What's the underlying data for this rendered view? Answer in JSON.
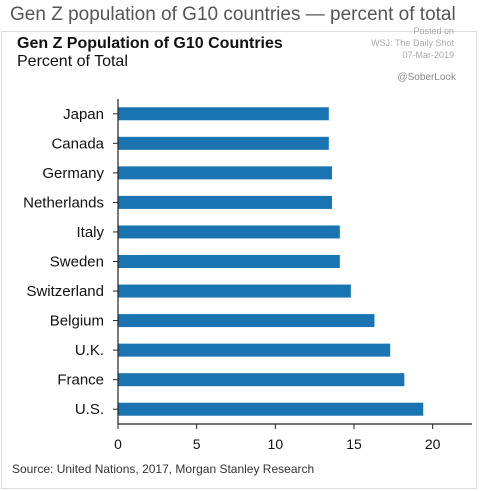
{
  "header": {
    "page_heading": "Gen Z population of G10 countries — percent of total",
    "stamp_posted": "Posted on",
    "stamp_source": "WSJ: The Daily Shot",
    "stamp_date": "07-Mar-2019",
    "handle": "@SoberLook"
  },
  "footer": {
    "source": "Source: United Nations, 2017, Morgan Stanley Research"
  },
  "colors": {
    "bar": "#1A74B2",
    "axis": "#222222"
  },
  "chart_data": {
    "type": "bar",
    "orientation": "horizontal",
    "title": "Gen Z Population of G10 Countries",
    "subtitle": "Percent of Total",
    "xlabel": "",
    "ylabel": "",
    "categories": [
      "Japan",
      "Canada",
      "Germany",
      "Netherlands",
      "Italy",
      "Sweden",
      "Switzerland",
      "Belgium",
      "U.K.",
      "France",
      "U.S."
    ],
    "values": [
      13.4,
      13.4,
      13.6,
      13.6,
      14.1,
      14.1,
      14.8,
      16.3,
      17.3,
      18.2,
      19.4
    ],
    "xlim": [
      0,
      22.5
    ],
    "xticks": [
      0,
      5,
      10,
      15,
      20
    ],
    "grid": false,
    "legend": "none"
  }
}
